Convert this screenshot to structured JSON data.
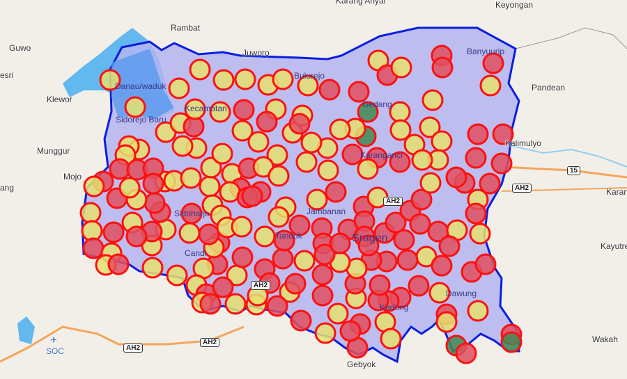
{
  "place_labels": {
    "karang_anyar": "Karang Anyar",
    "keyongan": "Keyongan",
    "rambat": "Rambat",
    "guwo": "Guwo",
    "juworo": "Juworo",
    "esri": "esri",
    "klewor": "Klewor",
    "banyuurip": "Banyuurip",
    "pandean": "Pandean",
    "munggur": "Munggur",
    "mojo": "Mojo",
    "ang": "ang",
    "kalimulyo": "Kalimulyo",
    "karan": "Karan",
    "kayutre": "Kayutre",
    "wakah": "Wakah",
    "gebyok": "Gebyok",
    "soc": "SOC"
  },
  "inner_labels": {
    "danau": "Danau/waduk",
    "sidorejo": "Sidorejo Baru",
    "kecamatan": "Kecamatan",
    "bulurejo": "Bulurejo",
    "gedang": "Gedang",
    "karanganci": "Karanganci",
    "jambanan": "Jambanan",
    "sragen": "Sragen",
    "tanduk": "Tanduk",
    "sidoharjo": "Sidoharjo",
    "candi": "Candi",
    "dawung": "Dawung",
    "kedung": "Kedung"
  },
  "road_shields": {
    "r15": "15",
    "ah2_a": "AH2",
    "ah2_b": "AH2",
    "ah2_c": "AH2",
    "ah2_d": "AH2",
    "ah2_e": "AH2"
  },
  "colors": {
    "boundary": "#0a1ee0",
    "region_fill": "#b4b4f0",
    "marker_stroke": "#ff1010",
    "marker_yellow": "#e6e070",
    "marker_red": "#e05060",
    "marker_green": "#3f8a52",
    "water": "#62b8ef",
    "road_orange": "#f5a55a"
  },
  "marker_legend": {
    "yellow": "yellow",
    "red": "red",
    "green": "green"
  }
}
